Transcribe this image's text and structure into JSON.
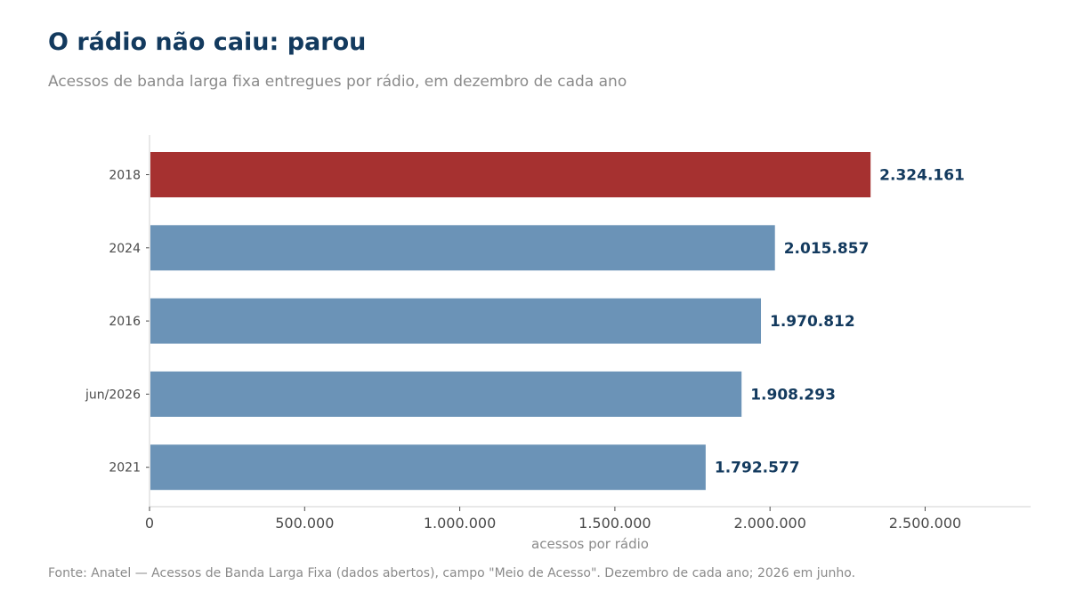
{
  "header": {
    "title": "O rádio não caiu: parou",
    "subtitle": "Acessos de banda larga fixa entregues por rádio, em dezembro de cada ano"
  },
  "footer": {
    "source": "Fonte: Anatel — Acessos de Banda Larga Fixa (dados abertos), campo \"Meio de Acesso\". Dezembro de cada ano; 2026 em junho."
  },
  "chart_data": {
    "type": "bar",
    "orientation": "horizontal",
    "title": "O rádio não caiu: parou",
    "subtitle": "Acessos de banda larga fixa entregues por rádio, em dezembro de cada ano",
    "categories": [
      "2018",
      "2024",
      "2016",
      "jun/2026",
      "2021"
    ],
    "values": [
      2324161,
      2015857,
      1970812,
      1908293,
      1792577
    ],
    "value_labels": [
      "2.324.161",
      "2.015.857",
      "1.970.812",
      "1.908.293",
      "1.792.577"
    ],
    "highlight_index": 0,
    "xlabel": "acessos por rádio",
    "ylabel": "",
    "xlim": [
      0,
      2840000
    ],
    "xticks": [
      0,
      500000,
      1000000,
      1500000,
      2000000,
      2500000
    ],
    "xtick_labels": [
      "0",
      "500.000",
      "1.000.000",
      "1.500.000",
      "2.000.000",
      "2.500.000"
    ],
    "grid": false,
    "colors": {
      "highlight": "#a63130",
      "default": "#6b93b7",
      "value_text": "#133a5e",
      "axis": "#d0d0d0"
    }
  }
}
